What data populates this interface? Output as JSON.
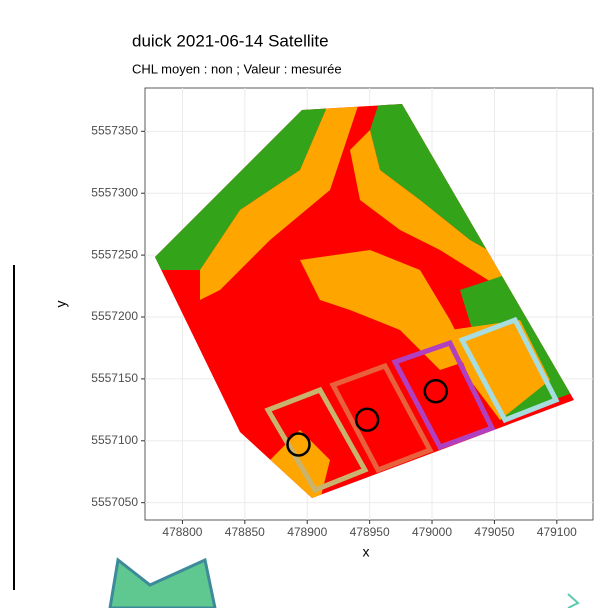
{
  "chart_data": {
    "type": "scatter",
    "title": "duick 2021-06-14 Satellite",
    "subtitle": "CHL moyen : non  ; Valeur : mesurée",
    "x_label": "x",
    "y_label": "y",
    "x": [
      478893,
      478948,
      479003
    ],
    "values": [
      5557097,
      5557117,
      5557140
    ],
    "color": "#000000",
    "xlim": [
      478770,
      479129
    ],
    "ylim": [
      5557036,
      5557385
    ],
    "xticks": [
      478800,
      478850,
      478900,
      478950,
      479000,
      479050,
      479100
    ],
    "yticks": [
      5557050,
      5557100,
      5557150,
      5557200,
      5557250,
      5557300,
      5557350
    ],
    "grid": true
  }
}
